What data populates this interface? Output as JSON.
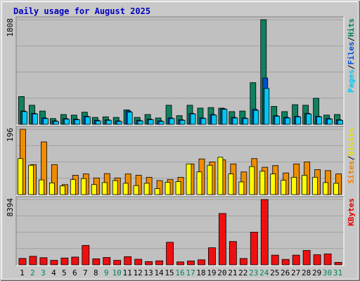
{
  "chart_data": {
    "type": "bar",
    "title": "Daily usage for August 2025",
    "days": [
      "1",
      "2",
      "3",
      "4",
      "5",
      "6",
      "7",
      "8",
      "9",
      "10",
      "11",
      "12",
      "13",
      "14",
      "15",
      "16",
      "17",
      "18",
      "19",
      "20",
      "21",
      "22",
      "23",
      "24",
      "25",
      "26",
      "27",
      "28",
      "29",
      "30",
      "31"
    ],
    "weekend_days": [
      "2",
      "3",
      "9",
      "10",
      "16",
      "17",
      "23",
      "24",
      "30",
      "31"
    ],
    "panels": [
      {
        "id": "traffic",
        "ymax_label": "1808",
        "ymax": 1808,
        "right_labels": [
          {
            "text": "Pages",
            "color": "#00c8f0"
          },
          {
            "text": "/",
            "color": "#000000"
          },
          {
            "text": "Files",
            "color": "#0050d8"
          },
          {
            "text": "/",
            "color": "#000000"
          },
          {
            "text": "Hits",
            "color": "#008060"
          }
        ],
        "series": [
          {
            "key": "hits",
            "color": "#108060",
            "values": [
              480,
              330,
              230,
              100,
              170,
              160,
              210,
              120,
              130,
              120,
              250,
              120,
              170,
              110,
              330,
              150,
              330,
              280,
              290,
              280,
              220,
              230,
              720,
              1808,
              310,
              220,
              340,
              330,
              450,
              160,
              170
            ]
          },
          {
            "key": "files",
            "color": "#0050d0",
            "values": [
              230,
              190,
              110,
              60,
              100,
              90,
              140,
              70,
              80,
              60,
              230,
              70,
              90,
              60,
              110,
              80,
              190,
              110,
              170,
              270,
              120,
              110,
              260,
              800,
              150,
              120,
              140,
              190,
              140,
              100,
              80
            ]
          },
          {
            "key": "pages",
            "color": "#00c8f0",
            "values": [
              220,
              180,
              100,
              50,
              90,
              80,
              130,
              60,
              70,
              50,
              210,
              60,
              80,
              50,
              100,
              70,
              180,
              100,
              160,
              260,
              110,
              100,
              240,
              620,
              140,
              110,
              130,
              180,
              130,
              90,
              70
            ]
          }
        ]
      },
      {
        "id": "visits",
        "ymax_label": "196",
        "ymax": 196,
        "right_labels": [
          {
            "text": "Sites",
            "color": "#f08000"
          },
          {
            "text": "/",
            "color": "#000000"
          },
          {
            "text": "Visits",
            "color": "#e0e000"
          }
        ],
        "series": [
          {
            "key": "visits",
            "color": "#f08c00",
            "values": [
              196,
              90,
              158,
              90,
              30,
              58,
              62,
              50,
              63,
              50,
              62,
              58,
              52,
              42,
              45,
              52,
              92,
              107,
              98,
              104,
              92,
              68,
              108,
              82,
              87,
              65,
              92,
              98,
              75,
              72,
              62
            ]
          },
          {
            "key": "sites",
            "color": "#ffff00",
            "values": [
              108,
              88,
              44,
              35,
              26,
              45,
              48,
              30,
              36,
              42,
              34,
              27,
              34,
              18,
              37,
              39,
              92,
              68,
              88,
              112,
              62,
              38,
              84,
              70,
              62,
              43,
              52,
              58,
              52,
              36,
              34
            ]
          }
        ]
      },
      {
        "id": "kbytes",
        "ymax_label": "8394",
        "ymax": 8394,
        "right_labels": [
          {
            "text": "KBytes",
            "color": "#e00000"
          }
        ],
        "series": [
          {
            "key": "kbytes",
            "color": "#ee1010",
            "values": [
              830,
              1100,
              920,
              580,
              880,
              1000,
              2500,
              780,
              950,
              580,
              1050,
              720,
              420,
              520,
              2900,
              380,
              500,
              650,
              2200,
              6600,
              3000,
              820,
              4200,
              8394,
              1250,
              700,
              1250,
              1850,
              1300,
              1400,
              320
            ]
          }
        ]
      }
    ]
  },
  "colors": {
    "page_border": "#909090",
    "panel_bg": "#c0c0c0",
    "title_color": "#0000c0",
    "grid_color": "#a0a0a0",
    "weekday_label": "#000000",
    "weekend_label": "#00805c"
  }
}
